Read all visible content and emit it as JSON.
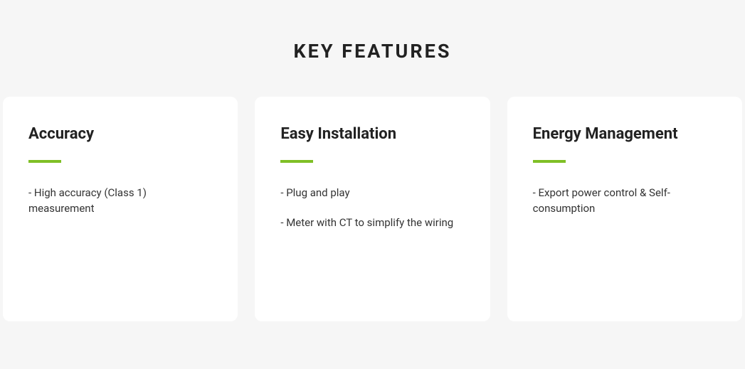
{
  "section": {
    "title": "KEY FEATURES",
    "title_fontsize": 27,
    "title_letter_spacing": 3,
    "title_color": "#222222",
    "background_color": "#f6f6f6"
  },
  "cards": [
    {
      "title": "Accuracy",
      "items": [
        "- High accuracy (Class 1) measurement"
      ]
    },
    {
      "title": "Easy Installation",
      "items": [
        "- Plug and play",
        "- Meter with CT to simplify the wiring"
      ]
    },
    {
      "title": "Energy Management",
      "items": [
        "- Export power control & Self-consumption"
      ]
    }
  ],
  "styling": {
    "card_background": "#ffffff",
    "card_border_radius": 10,
    "card_gap": 24,
    "card_padding": 40,
    "accent_color": "#7fbf26",
    "accent_width": 46,
    "accent_height": 4,
    "card_title_fontsize": 22,
    "card_title_color": "#222222",
    "body_fontsize": 15,
    "body_color": "#333333"
  }
}
